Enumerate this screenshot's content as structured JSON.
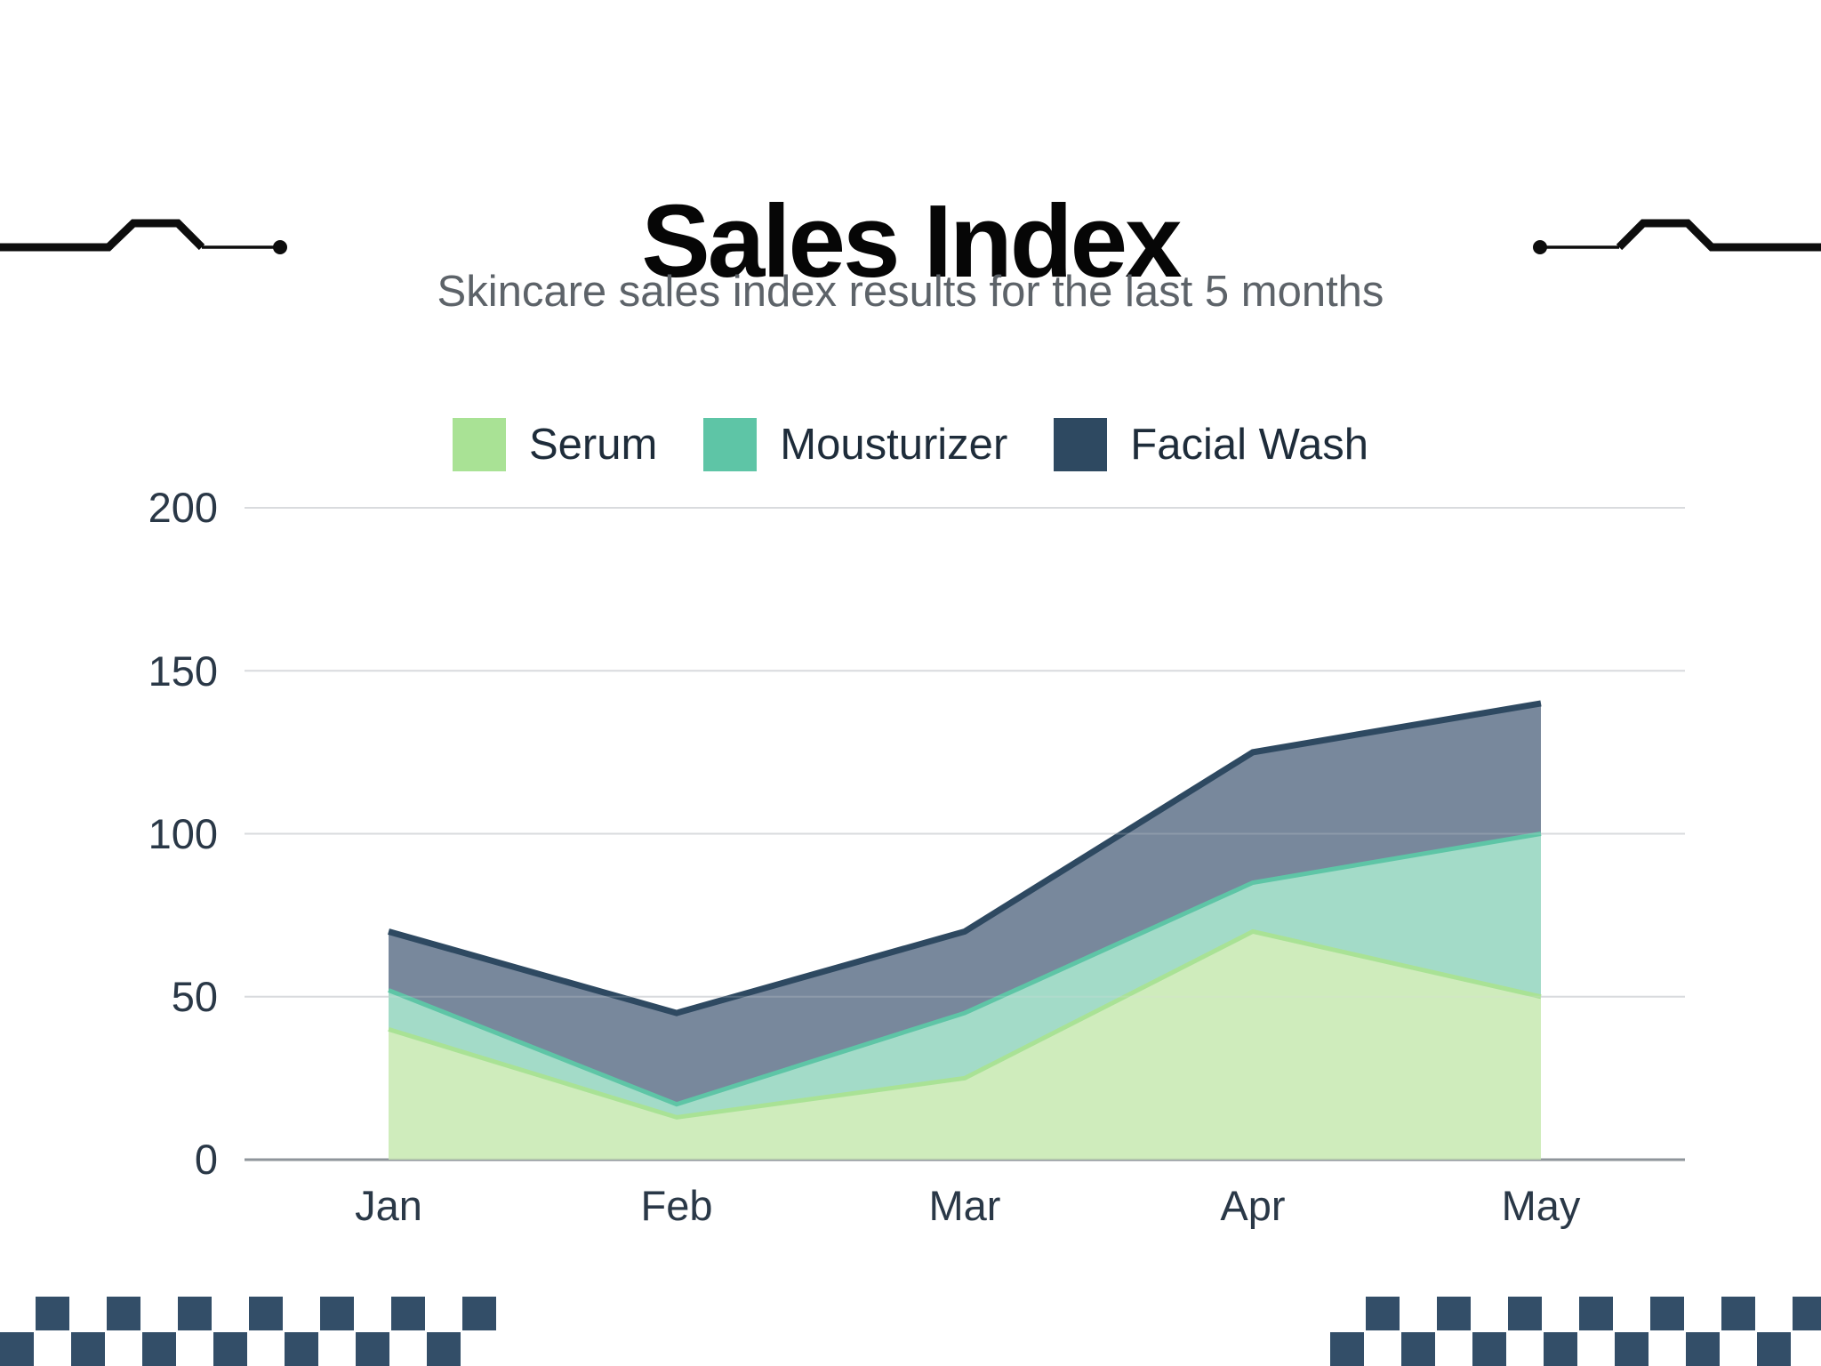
{
  "title": "Sales Index",
  "subtitle": "Skincare sales index results for the last 5 months",
  "legend": {
    "items": [
      "Serum",
      "Mousturizer",
      "Facial Wash"
    ]
  },
  "chart_data": {
    "type": "area",
    "overlap": "layered-back-to-front",
    "categories": [
      "Jan",
      "Feb",
      "Mar",
      "Apr",
      "May"
    ],
    "series": [
      {
        "name": "Serum",
        "values": [
          40,
          13,
          25,
          70,
          50
        ],
        "color": "#a9e295",
        "fill": "#cfecbc"
      },
      {
        "name": "Mousturizer",
        "values": [
          52,
          17,
          45,
          85,
          100
        ],
        "color": "#5ec5a6",
        "fill": "#a3dbc8"
      },
      {
        "name": "Facial Wash",
        "values": [
          70,
          45,
          70,
          125,
          140
        ],
        "color": "#2e4961",
        "fill": "#78889c"
      }
    ],
    "y_ticks": [
      0,
      50,
      100,
      150,
      200
    ],
    "ylim": [
      0,
      200
    ],
    "grid": true,
    "legend_position": "top",
    "gridline_color": "#d9dbde",
    "axis_line_color": "#8f959b",
    "tick_label_color": "#2a3847"
  },
  "decorations": {
    "zigzag_line_color": "#0d0d0d",
    "checker_color": "#334e68"
  }
}
